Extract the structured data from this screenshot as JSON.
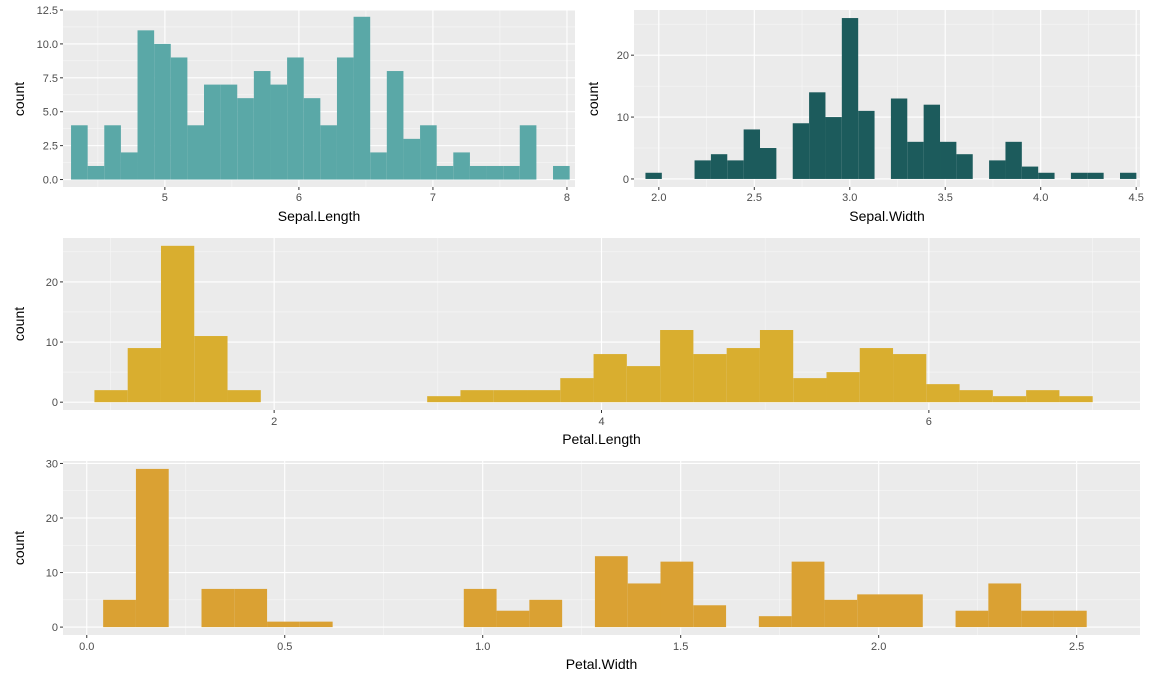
{
  "chart_data": [
    {
      "id": "sepal-length",
      "type": "histogram",
      "xlabel": "Sepal.Length",
      "ylabel": "count",
      "xlim": [
        4.24,
        8.06
      ],
      "ylim": [
        -0.55,
        12.5
      ],
      "xticks": [
        {
          "v": 5,
          "label": "5"
        },
        {
          "v": 6,
          "label": "6"
        },
        {
          "v": 7,
          "label": "7"
        },
        {
          "v": 8,
          "label": "8"
        }
      ],
      "yticks": [
        {
          "v": 0,
          "label": "0.0"
        },
        {
          "v": 2.5,
          "label": "2.5"
        },
        {
          "v": 5,
          "label": "5.0"
        },
        {
          "v": 7.5,
          "label": "7.5"
        },
        {
          "v": 10,
          "label": "10.0"
        },
        {
          "v": 12.5,
          "label": "12.5"
        }
      ],
      "color": "#5aa8a7",
      "bin_start": 4.3,
      "binwidth": 0.124,
      "values": [
        4,
        1,
        4,
        2,
        11,
        10,
        9,
        4,
        7,
        7,
        6,
        8,
        7,
        9,
        6,
        4,
        9,
        12,
        2,
        8,
        3,
        4,
        1,
        2,
        1,
        1,
        1,
        4,
        0,
        1
      ],
      "grid": true
    },
    {
      "id": "sepal-width",
      "type": "histogram",
      "xlabel": "Sepal.Width",
      "ylabel": "count",
      "xlim": [
        1.87,
        4.52
      ],
      "ylim": [
        -1.3,
        27.3
      ],
      "xticks": [
        {
          "v": 2.0,
          "label": "2.0"
        },
        {
          "v": 2.5,
          "label": "2.5"
        },
        {
          "v": 3.0,
          "label": "3.0"
        },
        {
          "v": 3.5,
          "label": "3.5"
        },
        {
          "v": 4.0,
          "label": "4.0"
        },
        {
          "v": 4.5,
          "label": "4.5"
        }
      ],
      "yticks": [
        {
          "v": 0,
          "label": "0"
        },
        {
          "v": 10,
          "label": "10"
        },
        {
          "v": 20,
          "label": "20"
        }
      ],
      "color": "#1c5b5c",
      "bin_start": 1.93,
      "binwidth": 0.0857,
      "values": [
        1,
        0,
        0,
        3,
        4,
        3,
        8,
        5,
        0,
        9,
        14,
        10,
        26,
        11,
        0,
        13,
        6,
        12,
        6,
        4,
        0,
        3,
        6,
        2,
        1,
        0,
        1,
        1,
        0,
        1
      ],
      "grid": true
    },
    {
      "id": "petal-length",
      "type": "histogram",
      "xlabel": "Petal.Length",
      "ylabel": "count",
      "xlim": [
        0.71,
        7.29
      ],
      "ylim": [
        -1.3,
        27.3
      ],
      "xticks": [
        {
          "v": 2,
          "label": "2"
        },
        {
          "v": 4,
          "label": "4"
        },
        {
          "v": 6,
          "label": "6"
        }
      ],
      "yticks": [
        {
          "v": 0,
          "label": "0"
        },
        {
          "v": 10,
          "label": "10"
        },
        {
          "v": 20,
          "label": "20"
        }
      ],
      "color": "#d9ae2f",
      "bin_start": 0.902,
      "binwidth": 0.2033,
      "values": [
        2,
        9,
        26,
        11,
        2,
        0,
        0,
        0,
        0,
        0,
        1,
        2,
        2,
        2,
        4,
        8,
        6,
        12,
        8,
        9,
        12,
        4,
        5,
        9,
        8,
        3,
        2,
        1,
        2,
        1
      ],
      "grid": true
    },
    {
      "id": "petal-width",
      "type": "histogram",
      "xlabel": "Petal.Width",
      "ylabel": "count",
      "xlim": [
        -0.06,
        2.66
      ],
      "ylim": [
        -1.45,
        30.45
      ],
      "xticks": [
        {
          "v": 0.0,
          "label": "0.0"
        },
        {
          "v": 0.5,
          "label": "0.5"
        },
        {
          "v": 1.0,
          "label": "1.0"
        },
        {
          "v": 1.5,
          "label": "1.5"
        },
        {
          "v": 2.0,
          "label": "2.0"
        },
        {
          "v": 2.5,
          "label": "2.5"
        }
      ],
      "yticks": [
        {
          "v": 0,
          "label": "0"
        },
        {
          "v": 10,
          "label": "10"
        },
        {
          "v": 20,
          "label": "20"
        },
        {
          "v": 30,
          "label": "30"
        }
      ],
      "color": "#daa133",
      "bin_start": 0.0414,
      "binwidth": 0.0828,
      "values": [
        5,
        29,
        0,
        7,
        7,
        1,
        1,
        0,
        0,
        0,
        0,
        7,
        3,
        5,
        0,
        13,
        8,
        12,
        4,
        0,
        2,
        12,
        5,
        6,
        6,
        0,
        3,
        8,
        3,
        3
      ],
      "grid": true
    }
  ]
}
